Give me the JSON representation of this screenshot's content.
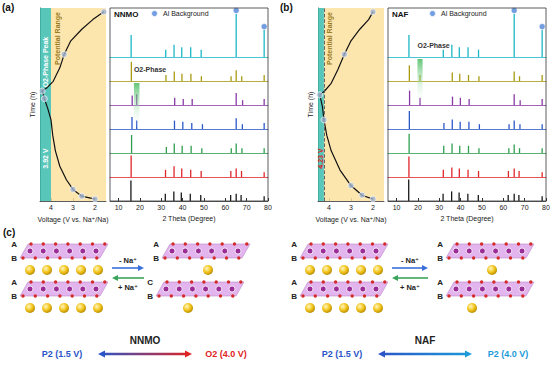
{
  "chart_data": [
    {
      "type": "line",
      "title": "(a)",
      "xlabel": "Voltage (V vs. Na⁺/Na)",
      "ylabel": "Time (h)",
      "xlim": [
        4.5,
        1.5
      ],
      "xticks": [
        2,
        3,
        4
      ],
      "ylim": [
        0,
        10
      ],
      "tick_labels": "x",
      "color": "#111111",
      "x": [
        2.0,
        2.6,
        3.0,
        3.3,
        3.6,
        3.8,
        3.92,
        4.0,
        4.15,
        4.3,
        4.4,
        4.2,
        3.9,
        3.6,
        3.4,
        3.1,
        2.6,
        2.1,
        1.6
      ],
      "values": [
        0.1,
        0.25,
        0.6,
        1.1,
        1.8,
        2.6,
        3.4,
        4.2,
        4.8,
        5.3,
        5.7,
        5.85,
        6.2,
        6.9,
        7.6,
        8.3,
        8.9,
        9.4,
        9.8
      ],
      "markers": {
        "color": "#9fb3cf",
        "marker": "circle",
        "x": [
          2.0,
          2.6,
          3.0,
          4.3,
          4.4,
          3.4,
          1.6
        ],
        "values": [
          0.1,
          0.25,
          0.6,
          5.3,
          5.7,
          7.6,
          9.8
        ]
      },
      "shaded": [
        {
          "range": [
            4.0,
            4.5
          ],
          "color": "#3cbcae"
        },
        {
          "range": [
            1.5,
            4.0
          ],
          "color": "#fde2a0",
          "label": "Potential Range"
        }
      ],
      "annotations": [
        {
          "text": "3.92 V",
          "color": "#ffffff"
        },
        {
          "text": "O2-Phase Peak",
          "color": "#ffffff"
        }
      ]
    },
    {
      "type": "bar",
      "title": "NNMO",
      "xlabel": "2 Theta (Degree)",
      "xlim": [
        6,
        80
      ],
      "xticks": [
        10,
        20,
        30,
        40,
        50,
        60,
        70,
        80
      ],
      "ylim": [
        0,
        1
      ],
      "tick_labels": "x",
      "series": [
        {
          "color": "#1a1a1a",
          "x": [
            15.8,
            31.9,
            35.9,
            39.4,
            43.6,
            48.5,
            62.5,
            65.1,
            67.4,
            78.2
          ],
          "values": [
            0.85,
            0.3,
            0.4,
            0.35,
            0.3,
            0.25,
            0.25,
            0.3,
            0.25,
            0.2
          ]
        },
        {
          "color": "#e0262a",
          "x": [
            15.9,
            32.0,
            36.0,
            39.6,
            43.8,
            48.7,
            62.6,
            65.1,
            67.6,
            78.2
          ],
          "values": [
            0.9,
            0.3,
            0.45,
            0.35,
            0.3,
            0.25,
            0.25,
            0.35,
            0.25,
            0.2
          ]
        },
        {
          "color": "#2e9e4f",
          "x": [
            16.1,
            32.4,
            36.1,
            39.8,
            44.0,
            49.0,
            62.8,
            65.1,
            67.8,
            78.2
          ],
          "values": [
            0.75,
            0.25,
            0.4,
            0.3,
            0.3,
            0.2,
            0.2,
            0.4,
            0.2,
            0.2
          ]
        },
        {
          "color": "#2b58c9",
          "x": [
            16.3,
            18.5,
            36.2,
            40.1,
            44.3,
            49.3,
            65.1,
            68.0,
            78.2
          ],
          "values": [
            0.5,
            0.35,
            0.35,
            0.3,
            0.25,
            0.2,
            0.45,
            0.2,
            0.25
          ]
        },
        {
          "color": "#8a3aa8",
          "x": [
            16.4,
            18.5,
            36.3,
            40.3,
            44.5,
            65.1,
            68.1,
            78.2
          ],
          "values": [
            0.4,
            0.45,
            0.3,
            0.25,
            0.25,
            0.5,
            0.2,
            0.25
          ]
        },
        {
          "color": "#a89a12",
          "x": [
            16.0,
            32.2,
            36.1,
            39.7,
            43.9,
            48.8,
            62.7,
            65.1,
            67.7,
            78.2
          ],
          "values": [
            0.8,
            0.25,
            0.4,
            0.3,
            0.3,
            0.2,
            0.2,
            0.45,
            0.2,
            0.25
          ]
        },
        {
          "color": "#1cb8c8",
          "x": [
            15.9,
            32.1,
            36.0,
            39.6,
            43.8,
            48.7,
            65.1,
            78.2
          ],
          "values": [
            0.45,
            0.15,
            0.25,
            0.2,
            0.2,
            0.15,
            0.88,
            0.55
          ]
        }
      ],
      "reference_peaks": {
        "name": "Al Background",
        "color": "#4f86d9",
        "marker": "circle",
        "x": [
          65.1,
          78.2
        ],
        "values": [
          0.95,
          0.62
        ]
      },
      "band": {
        "label": "O2-Phase",
        "color": "#2fb34a",
        "x": [
          17.2,
          19.8
        ],
        "traces": [
          3,
          4
        ]
      }
    },
    {
      "type": "line",
      "title": "(b)",
      "xlabel": "Voltage (V vs. Na⁺/Na)",
      "ylabel": "Time (h)",
      "xlim": [
        4.5,
        1.5
      ],
      "xticks": [
        2,
        3,
        4
      ],
      "ylim": [
        0,
        10
      ],
      "tick_labels": "x",
      "color": "#111111",
      "x": [
        2.0,
        2.5,
        3.0,
        3.5,
        3.9,
        4.1,
        4.23,
        4.3,
        4.42,
        4.2,
        3.9,
        3.6,
        3.3,
        3.0,
        2.6,
        2.2,
        2.0
      ],
      "values": [
        0.1,
        0.3,
        0.8,
        1.6,
        2.6,
        3.4,
        4.2,
        4.9,
        5.5,
        5.7,
        6.1,
        6.8,
        7.6,
        8.3,
        8.9,
        9.4,
        9.8
      ],
      "markers": {
        "color": "#9fb3cf",
        "marker": "circle",
        "x": [
          2.0,
          2.5,
          3.0,
          4.23,
          4.42,
          3.3,
          2.0
        ],
        "values": [
          0.1,
          0.3,
          0.8,
          4.2,
          5.5,
          7.6,
          9.8
        ]
      },
      "shaded": [
        {
          "range": [
            4.23,
            4.5
          ],
          "color": "#3cbcae"
        },
        {
          "range": [
            1.5,
            4.23
          ],
          "color": "#fde2a0",
          "label": "Potential Range"
        }
      ],
      "vline": {
        "x": 4.23,
        "line_style": "dashed",
        "color": "#555555"
      },
      "annotations": [
        {
          "text": "4.23 V",
          "color": "#e02020"
        }
      ]
    },
    {
      "type": "bar",
      "title": "NAF",
      "xlabel": "2 Theta (Degree)",
      "xlim": [
        6,
        80
      ],
      "xticks": [
        10,
        20,
        30,
        40,
        50,
        60,
        70,
        80
      ],
      "ylim": [
        0,
        1
      ],
      "tick_labels": "x",
      "series": [
        {
          "color": "#1a1a1a",
          "x": [
            15.7,
            31.8,
            35.8,
            39.3,
            43.4,
            48.3,
            62.3,
            65.1,
            67.3,
            78.2
          ],
          "values": [
            0.9,
            0.3,
            0.4,
            0.35,
            0.3,
            0.25,
            0.25,
            0.3,
            0.25,
            0.2
          ]
        },
        {
          "color": "#e0262a",
          "x": [
            15.8,
            31.9,
            35.9,
            39.4,
            43.5,
            48.4,
            62.4,
            65.1,
            67.4,
            78.2
          ],
          "values": [
            0.85,
            0.3,
            0.4,
            0.35,
            0.3,
            0.25,
            0.25,
            0.35,
            0.25,
            0.2
          ]
        },
        {
          "color": "#2e9e4f",
          "x": [
            15.9,
            32.1,
            36.0,
            39.6,
            43.7,
            48.6,
            62.6,
            65.1,
            67.6,
            78.2
          ],
          "values": [
            0.8,
            0.3,
            0.4,
            0.3,
            0.3,
            0.2,
            0.2,
            0.35,
            0.2,
            0.2
          ]
        },
        {
          "color": "#2b58c9",
          "x": [
            16.0,
            32.2,
            36.1,
            39.8,
            43.9,
            48.8,
            62.7,
            65.1,
            67.8,
            78.2
          ],
          "values": [
            0.75,
            0.25,
            0.4,
            0.3,
            0.3,
            0.2,
            0.2,
            0.35,
            0.2,
            0.2
          ]
        },
        {
          "color": "#8a3aa8",
          "x": [
            16.1,
            21.0,
            36.2,
            39.9,
            44.0,
            65.1,
            67.9,
            78.2
          ],
          "values": [
            0.6,
            0.3,
            0.35,
            0.3,
            0.25,
            0.45,
            0.2,
            0.25
          ]
        },
        {
          "color": "#a89a12",
          "x": [
            16.0,
            21.0,
            36.1,
            39.6,
            43.7,
            48.6,
            65.1,
            67.6,
            78.2
          ],
          "values": [
            0.65,
            0.25,
            0.35,
            0.3,
            0.25,
            0.2,
            0.4,
            0.2,
            0.25
          ]
        },
        {
          "color": "#1cb8c8",
          "x": [
            15.8,
            31.9,
            35.9,
            39.4,
            43.5,
            48.4,
            65.1,
            78.2
          ],
          "values": [
            0.45,
            0.15,
            0.25,
            0.2,
            0.2,
            0.15,
            0.88,
            0.55
          ]
        }
      ],
      "reference_peaks": {
        "name": "Al Background",
        "color": "#4f86d9",
        "marker": "circle",
        "x": [
          65.1,
          78.2
        ],
        "values": [
          0.95,
          0.62
        ]
      },
      "band": {
        "label": "O2-Phase",
        "color": "#2fb34a",
        "x": [
          19.8,
          22.2
        ],
        "traces": [
          4,
          5
        ]
      }
    }
  ],
  "diagram": {
    "label": "(c)",
    "panels": [
      {
        "name": "NNMO",
        "remove": "- Na⁺",
        "insert": "+ Na⁺",
        "before": {
          "layers": [
            "A",
            "B",
            "A",
            "B"
          ],
          "state": "P2 (1.5 V)",
          "color": "#2a55c8"
        },
        "after": {
          "layers": [
            "A",
            "B",
            "C",
            "B"
          ],
          "state": "O2 (4.0 V)",
          "color": "#e02424"
        }
      },
      {
        "name": "NAF",
        "remove": "- Na⁺",
        "insert": "+ Na⁺",
        "before": {
          "layers": [
            "A",
            "B",
            "A",
            "B"
          ],
          "state": "P2 (1.5 V)",
          "color": "#2a55c8"
        },
        "after": {
          "layers": [
            "A",
            "B",
            "A",
            "B"
          ],
          "state": "P2 (4.0 V)",
          "color": "#1d9bd8"
        }
      }
    ]
  }
}
